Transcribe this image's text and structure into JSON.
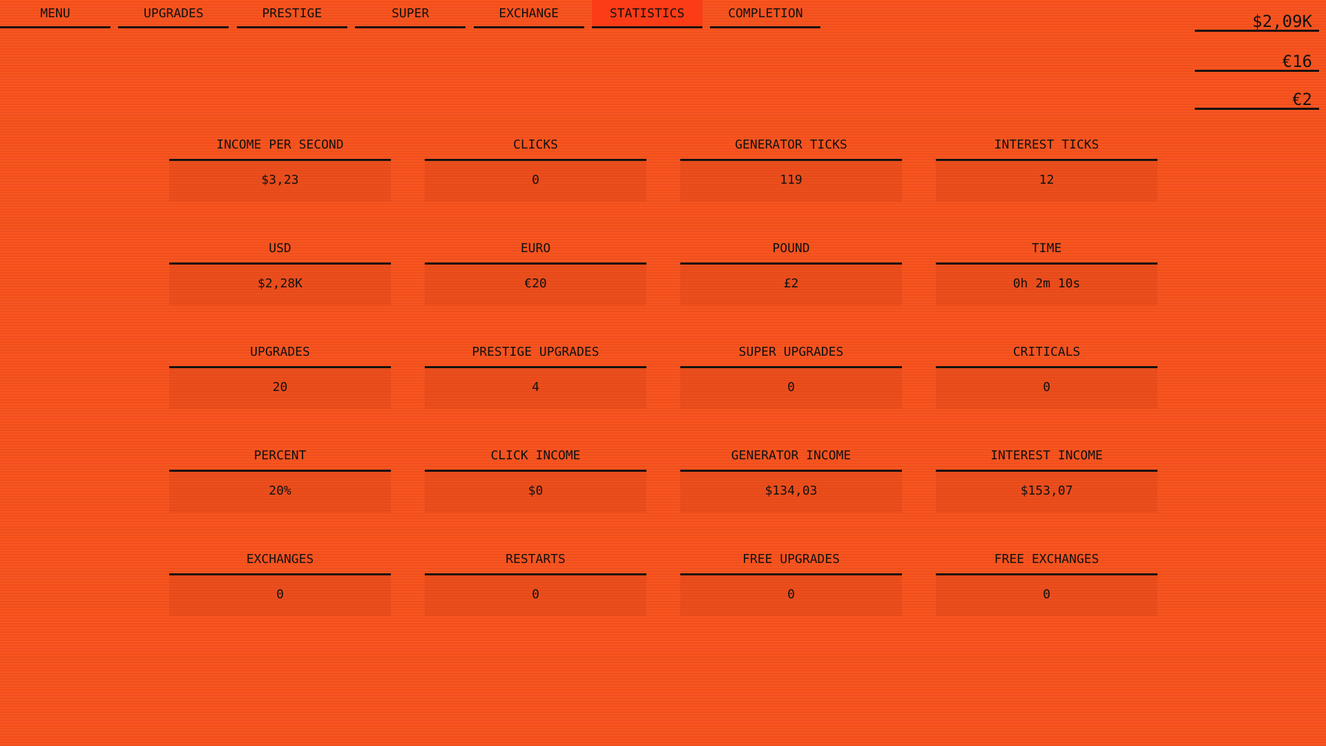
{
  "nav": {
    "tabs": [
      {
        "label": "MENU",
        "active": false
      },
      {
        "label": "UPGRADES",
        "active": false
      },
      {
        "label": "PRESTIGE",
        "active": false
      },
      {
        "label": "SUPER",
        "active": false
      },
      {
        "label": "EXCHANGE",
        "active": false
      },
      {
        "label": "STATISTICS",
        "active": true
      },
      {
        "label": "COMPLETION",
        "active": false
      }
    ]
  },
  "wallet": {
    "usd": "$2,09K",
    "euro": "€16",
    "other": "€2"
  },
  "stats": [
    {
      "title": "INCOME PER SECOND",
      "value": "$3,23"
    },
    {
      "title": "CLICKS",
      "value": "0"
    },
    {
      "title": "GENERATOR TICKS",
      "value": "119"
    },
    {
      "title": "INTEREST TICKS",
      "value": "12"
    },
    {
      "title": "USD",
      "value": "$2,28K"
    },
    {
      "title": "EURO",
      "value": "€20"
    },
    {
      "title": "POUND",
      "value": "£2"
    },
    {
      "title": "TIME",
      "value": "0h 2m 10s"
    },
    {
      "title": "UPGRADES",
      "value": "20"
    },
    {
      "title": "PRESTIGE UPGRADES",
      "value": "4"
    },
    {
      "title": "SUPER UPGRADES",
      "value": "0"
    },
    {
      "title": "CRITICALS",
      "value": "0"
    },
    {
      "title": "PERCENT",
      "value": "20%"
    },
    {
      "title": "CLICK INCOME",
      "value": "$0"
    },
    {
      "title": "GENERATOR INCOME",
      "value": "$134,03"
    },
    {
      "title": "INTEREST INCOME",
      "value": "$153,07"
    },
    {
      "title": "EXCHANGES",
      "value": "0"
    },
    {
      "title": "RESTARTS",
      "value": "0"
    },
    {
      "title": "FREE UPGRADES",
      "value": "0"
    },
    {
      "title": "FREE EXCHANGES",
      "value": "0"
    }
  ],
  "colors": {
    "background": "#f7531f",
    "active_tab": "#fb3c17",
    "text": "#111111"
  }
}
